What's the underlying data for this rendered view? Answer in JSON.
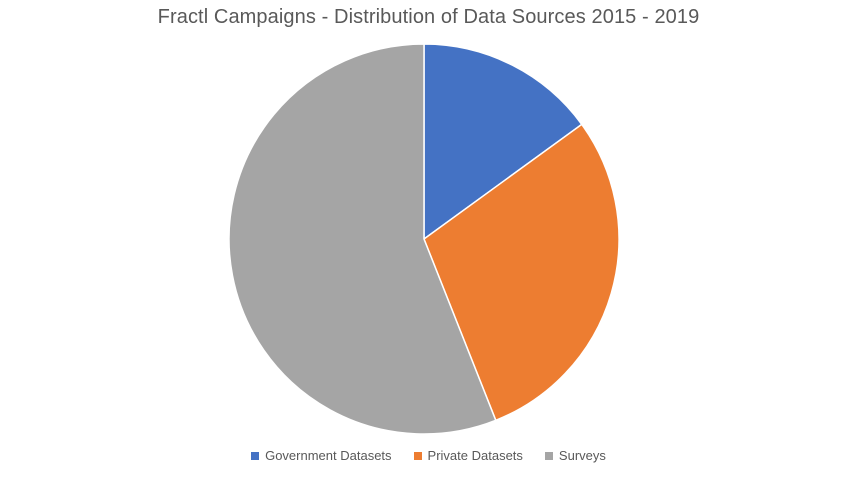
{
  "chart_data": {
    "type": "pie",
    "title": "Fractl Campaigns - Distribution of Data Sources 2015 - 2019",
    "categories": [
      "Government Datasets",
      "Private Datasets",
      "Surveys"
    ],
    "values": [
      15,
      29,
      56
    ],
    "colors": [
      "#4472C4",
      "#ED7D31",
      "#A5A5A5"
    ],
    "start_angle_deg": 0,
    "direction": "clockwise",
    "legend_position": "bottom",
    "slice_border_color": "#ffffff"
  }
}
